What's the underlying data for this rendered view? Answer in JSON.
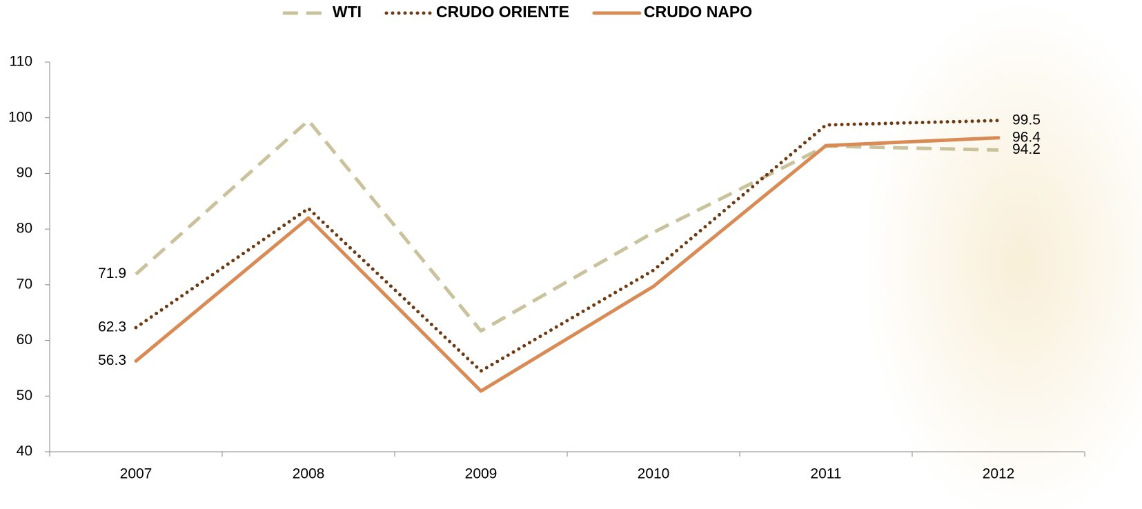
{
  "chart_data": {
    "type": "line",
    "categories": [
      "2007",
      "2008",
      "2009",
      "2010",
      "2011",
      "2012"
    ],
    "series": [
      {
        "name": "WTI",
        "color": "#c9c29c",
        "style": "dashed",
        "values": [
          71.9,
          99.5,
          61.7,
          79.4,
          94.9,
          94.2
        ]
      },
      {
        "name": "CRUDO ORIENTE",
        "color": "#6b3912",
        "style": "dotted",
        "values": [
          62.3,
          83.7,
          54.5,
          72.6,
          98.7,
          99.5
        ]
      },
      {
        "name": "CRUDO NAPO",
        "color": "#d98b56",
        "style": "solid",
        "values": [
          56.3,
          82.0,
          50.9,
          69.7,
          95.0,
          96.4
        ]
      }
    ],
    "ylim": [
      40,
      110
    ],
    "yticks": [
      40,
      50,
      60,
      70,
      80,
      90,
      100,
      110
    ],
    "legend": "top",
    "grid": false
  }
}
